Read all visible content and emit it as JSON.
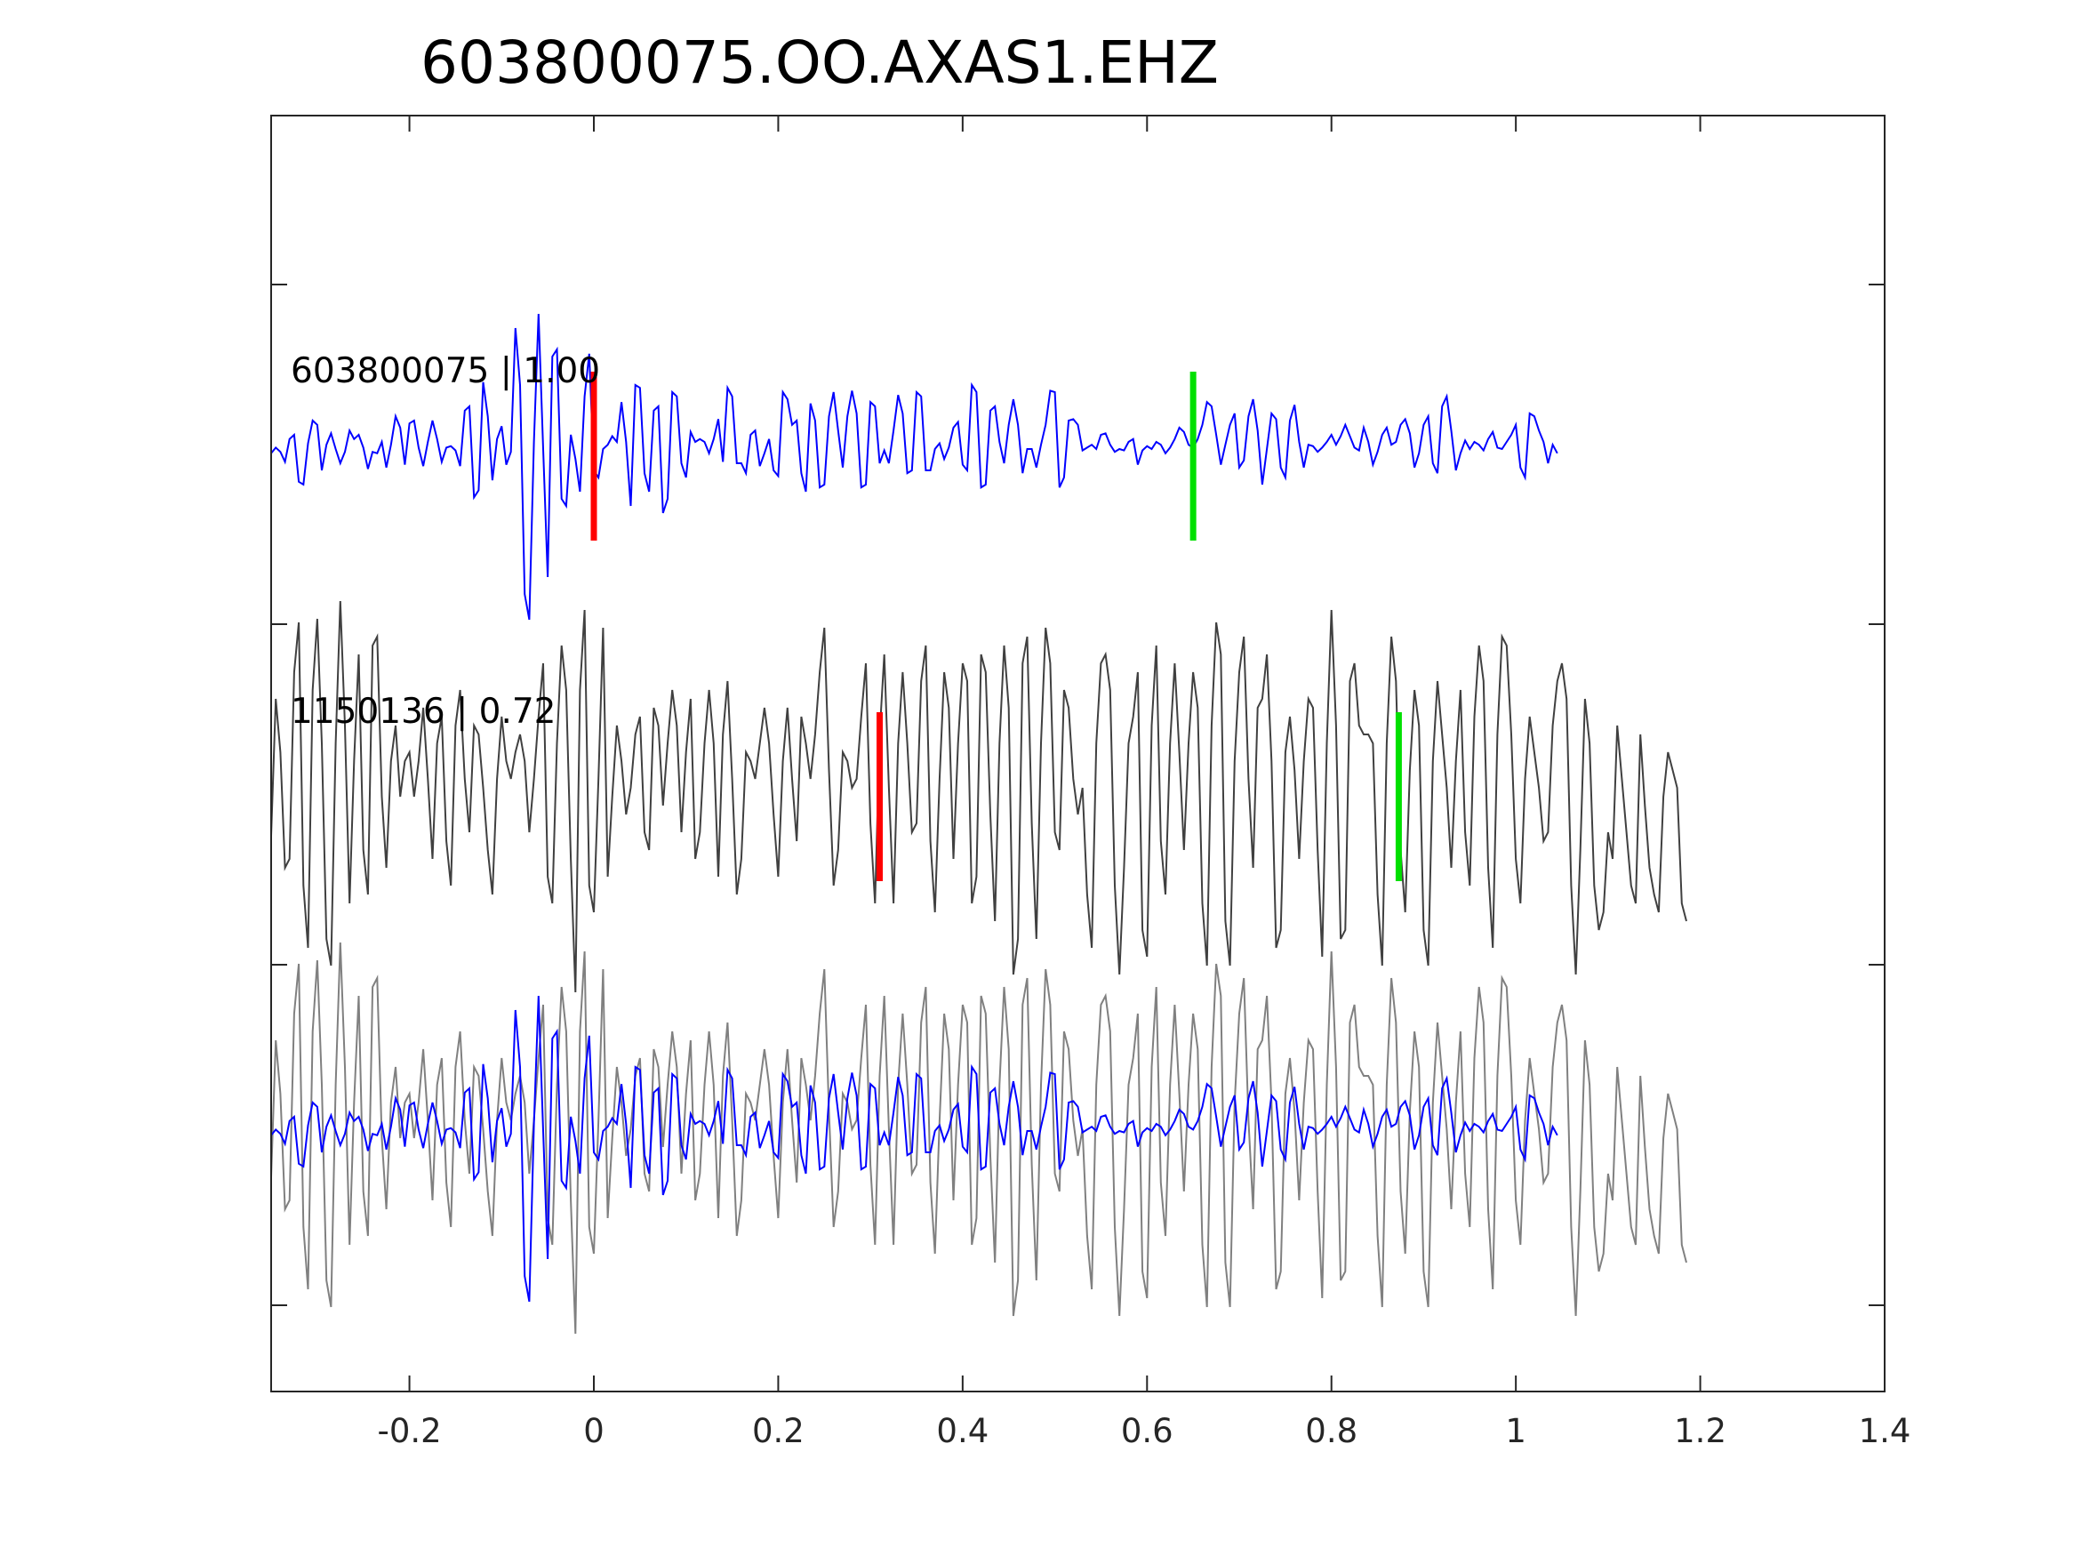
{
  "chart_data": {
    "type": "line",
    "title": "603800075.OO.AXAS1.EHZ",
    "xlabel": "",
    "ylabel": "",
    "xlim": [
      -0.35,
      1.4
    ],
    "x_ticks": [
      -0.2,
      0,
      0.2,
      0.4,
      0.6,
      0.8,
      1,
      1.2,
      1.4
    ],
    "x_tick_labels": [
      "-0.2",
      "0",
      "0.2",
      "0.4",
      "0.6",
      "0.8",
      "1",
      "1.2",
      "1.4"
    ],
    "sample_interval": 0.005,
    "traces": [
      {
        "label": "603800075 | 1.00",
        "color": "#0000ff",
        "p_pick": 0.0,
        "s_pick": 0.65,
        "values": [
          0.02,
          0.06,
          0.03,
          -0.04,
          0.12,
          0.15,
          -0.18,
          -0.2,
          0.09,
          0.25,
          0.22,
          -0.1,
          0.08,
          0.16,
          0.05,
          -0.05,
          0.03,
          0.18,
          0.12,
          0.15,
          0.06,
          -0.09,
          0.03,
          0.02,
          0.1,
          -0.08,
          0.08,
          0.28,
          0.2,
          -0.06,
          0.23,
          0.25,
          0.06,
          -0.07,
          0.1,
          0.25,
          0.12,
          -0.04,
          0.06,
          0.07,
          0.04,
          -0.07,
          0.32,
          0.35,
          -0.29,
          -0.24,
          0.52,
          0.28,
          -0.17,
          0.12,
          0.21,
          -0.06,
          0.03,
          0.9,
          0.5,
          -0.97,
          -1.15,
          0.1,
          1.0,
          0.05,
          -0.85,
          0.7,
          0.75,
          -0.3,
          -0.35,
          0.15,
          -0.02,
          -0.25,
          0.42,
          0.72,
          -0.1,
          -0.15,
          0.05,
          0.08,
          0.14,
          0.1,
          0.38,
          0.1,
          -0.35,
          0.5,
          0.48,
          -0.12,
          -0.25,
          0.32,
          0.35,
          -0.4,
          -0.3,
          0.45,
          0.42,
          -0.05,
          -0.15,
          0.17,
          0.1,
          0.12,
          0.1,
          0.02,
          0.12,
          0.26,
          -0.04,
          0.48,
          0.42,
          -0.05,
          -0.05,
          -0.12,
          0.15,
          0.18,
          -0.07,
          0.02,
          0.12,
          -0.1,
          -0.14,
          0.45,
          0.4,
          0.22,
          0.25,
          -0.12,
          -0.25,
          0.37,
          0.25,
          -0.22,
          -0.2,
          0.28,
          0.45,
          0.18,
          -0.08,
          0.28,
          0.46,
          0.3,
          -0.22,
          -0.2,
          0.38,
          0.35,
          -0.05,
          0.04,
          -0.05,
          0.18,
          0.43,
          0.3,
          -0.12,
          -0.1,
          0.45,
          0.42,
          -0.1,
          -0.1,
          0.05,
          0.09,
          -0.02,
          0.06,
          0.2,
          0.24,
          -0.06,
          -0.1,
          0.5,
          0.45,
          -0.22,
          -0.2,
          0.32,
          0.35,
          0.1,
          -0.05,
          0.22,
          0.4,
          0.22,
          -0.12,
          0.05,
          0.05,
          -0.08,
          0.08,
          0.22,
          0.46,
          0.45,
          -0.22,
          -0.15,
          0.25,
          0.26,
          0.22,
          0.04,
          0.06,
          0.08,
          0.05,
          0.15,
          0.16,
          0.08,
          0.03,
          0.05,
          0.04,
          0.1,
          0.12,
          -0.06,
          0.04,
          0.07,
          0.05,
          0.1,
          0.08,
          0.02,
          0.06,
          0.12,
          0.2,
          0.17,
          0.08,
          0.06,
          0.12,
          0.22,
          0.38,
          0.35,
          0.15,
          -0.06,
          0.08,
          0.22,
          0.3,
          -0.08,
          -0.03,
          0.28,
          0.4,
          0.18,
          -0.2,
          0.05,
          0.3,
          0.26,
          -0.08,
          -0.15,
          0.25,
          0.36,
          0.1,
          -0.08,
          0.08,
          0.07,
          0.03,
          0.06,
          0.1,
          0.15,
          0.08,
          0.14,
          0.22,
          0.14,
          0.06,
          0.04,
          0.2,
          0.1,
          -0.06,
          0.03,
          0.15,
          0.2,
          0.08,
          0.1,
          0.22,
          0.26,
          0.16,
          -0.08,
          0.02,
          0.22,
          0.28,
          -0.05,
          -0.12,
          0.35,
          0.42,
          0.18,
          -0.1,
          0.02,
          0.11,
          0.05,
          0.1,
          0.08,
          0.04,
          0.12,
          0.17,
          0.06,
          0.05,
          0.1,
          0.15,
          0.22,
          -0.08,
          -0.15,
          0.3,
          0.28,
          0.18,
          0.1,
          -0.05,
          0.08,
          0.02
        ]
      },
      {
        "label": "1150136 | 0.72",
        "color": "#404040",
        "p_pick": 0.31,
        "s_pick": 0.873,
        "values": [
          -0.22,
          0.55,
          0.25,
          -0.4,
          -0.35,
          0.7,
          0.98,
          -0.5,
          -0.85,
          0.6,
          1.0,
          0.3,
          -0.8,
          -0.95,
          0.3,
          1.1,
          0.4,
          -0.6,
          0.2,
          0.8,
          -0.3,
          -0.55,
          0.85,
          0.9,
          0.0,
          -0.4,
          0.2,
          0.4,
          0.0,
          0.2,
          0.25,
          0.0,
          0.2,
          0.5,
          0.1,
          -0.35,
          0.3,
          0.45,
          -0.25,
          -0.5,
          0.4,
          0.6,
          0.1,
          -0.2,
          0.4,
          0.35,
          0.05,
          -0.3,
          -0.55,
          0.1,
          0.45,
          0.2,
          0.1,
          0.25,
          0.35,
          0.2,
          -0.2,
          0.1,
          0.45,
          0.75,
          -0.45,
          -0.6,
          0.3,
          0.85,
          0.6,
          -0.35,
          -1.1,
          0.6,
          1.05,
          -0.5,
          -0.65,
          0.1,
          0.95,
          -0.45,
          0.0,
          0.4,
          0.2,
          -0.1,
          0.05,
          0.35,
          0.45,
          -0.2,
          -0.3,
          0.5,
          0.4,
          -0.05,
          0.3,
          0.6,
          0.4,
          -0.2,
          0.25,
          0.55,
          -0.35,
          -0.2,
          0.3,
          0.6,
          0.3,
          -0.45,
          0.35,
          0.65,
          0.1,
          -0.55,
          -0.35,
          0.25,
          0.2,
          0.1,
          0.3,
          0.5,
          0.3,
          -0.1,
          -0.45,
          0.2,
          0.5,
          0.1,
          -0.25,
          0.45,
          0.3,
          0.1,
          0.35,
          0.7,
          0.95,
          0.15,
          -0.5,
          -0.3,
          0.25,
          0.2,
          0.05,
          0.1,
          0.45,
          0.75,
          -0.15,
          -0.6,
          0.35,
          0.8,
          0.05,
          -0.6,
          0.3,
          0.7,
          0.3,
          -0.2,
          -0.15,
          0.65,
          0.85,
          -0.25,
          -0.65,
          0.1,
          0.7,
          0.5,
          -0.35,
          0.3,
          0.75,
          0.65,
          -0.6,
          -0.45,
          0.8,
          0.7,
          -0.1,
          -0.7,
          0.3,
          0.85,
          0.5,
          -1.0,
          -0.8,
          0.75,
          0.9,
          -0.15,
          -0.8,
          0.3,
          0.95,
          0.75,
          -0.2,
          -0.3,
          0.6,
          0.5,
          0.1,
          -0.1,
          0.05,
          -0.55,
          -0.85,
          0.3,
          0.75,
          0.8,
          0.6,
          -0.5,
          -1.0,
          -0.4,
          0.3,
          0.45,
          0.7,
          -0.75,
          -0.9,
          0.4,
          0.85,
          -0.25,
          -0.55,
          0.3,
          0.75,
          0.25,
          -0.3,
          0.3,
          0.7,
          0.5,
          -0.6,
          -0.95,
          0.4,
          0.98,
          0.8,
          -0.7,
          -0.95,
          0.2,
          0.7,
          0.9,
          0.1,
          -0.4,
          0.5,
          0.55,
          0.8,
          0.2,
          -0.85,
          -0.75,
          0.25,
          0.45,
          0.15,
          -0.35,
          0.2,
          0.55,
          0.5,
          -0.3,
          -0.9,
          0.3,
          1.05,
          0.4,
          -0.8,
          -0.75,
          0.65,
          0.75,
          0.4,
          0.35,
          0.35,
          0.3,
          -0.55,
          -0.95,
          0.3,
          0.9,
          0.65,
          -0.3,
          -0.65,
          0.15,
          0.6,
          0.4,
          -0.75,
          -0.95,
          0.2,
          0.65,
          0.35,
          0.05,
          -0.4,
          0.2,
          0.6,
          -0.2,
          -0.5,
          0.45,
          0.85,
          0.65,
          -0.4,
          -0.85,
          0.35,
          0.9,
          0.85,
          0.35,
          -0.35,
          -0.6,
          0.1,
          0.45,
          0.25,
          0.05,
          -0.25,
          -0.2,
          0.4,
          0.65,
          0.75,
          0.55,
          -0.5,
          -1.0,
          -0.3,
          0.55,
          0.3,
          -0.5,
          -0.75,
          -0.65,
          -0.2,
          -0.35,
          0.4,
          0.1,
          -0.2,
          -0.5,
          -0.6,
          0.35,
          -0.05,
          -0.4,
          -0.55,
          -0.65,
          0.0,
          0.25,
          0.15,
          0.05,
          -0.6,
          -0.7
        ]
      }
    ],
    "overlay": {
      "colors": [
        "#808080",
        "#0000ff"
      ]
    },
    "pick_colors": {
      "p": "#ff0000",
      "s": "#00e000"
    }
  }
}
